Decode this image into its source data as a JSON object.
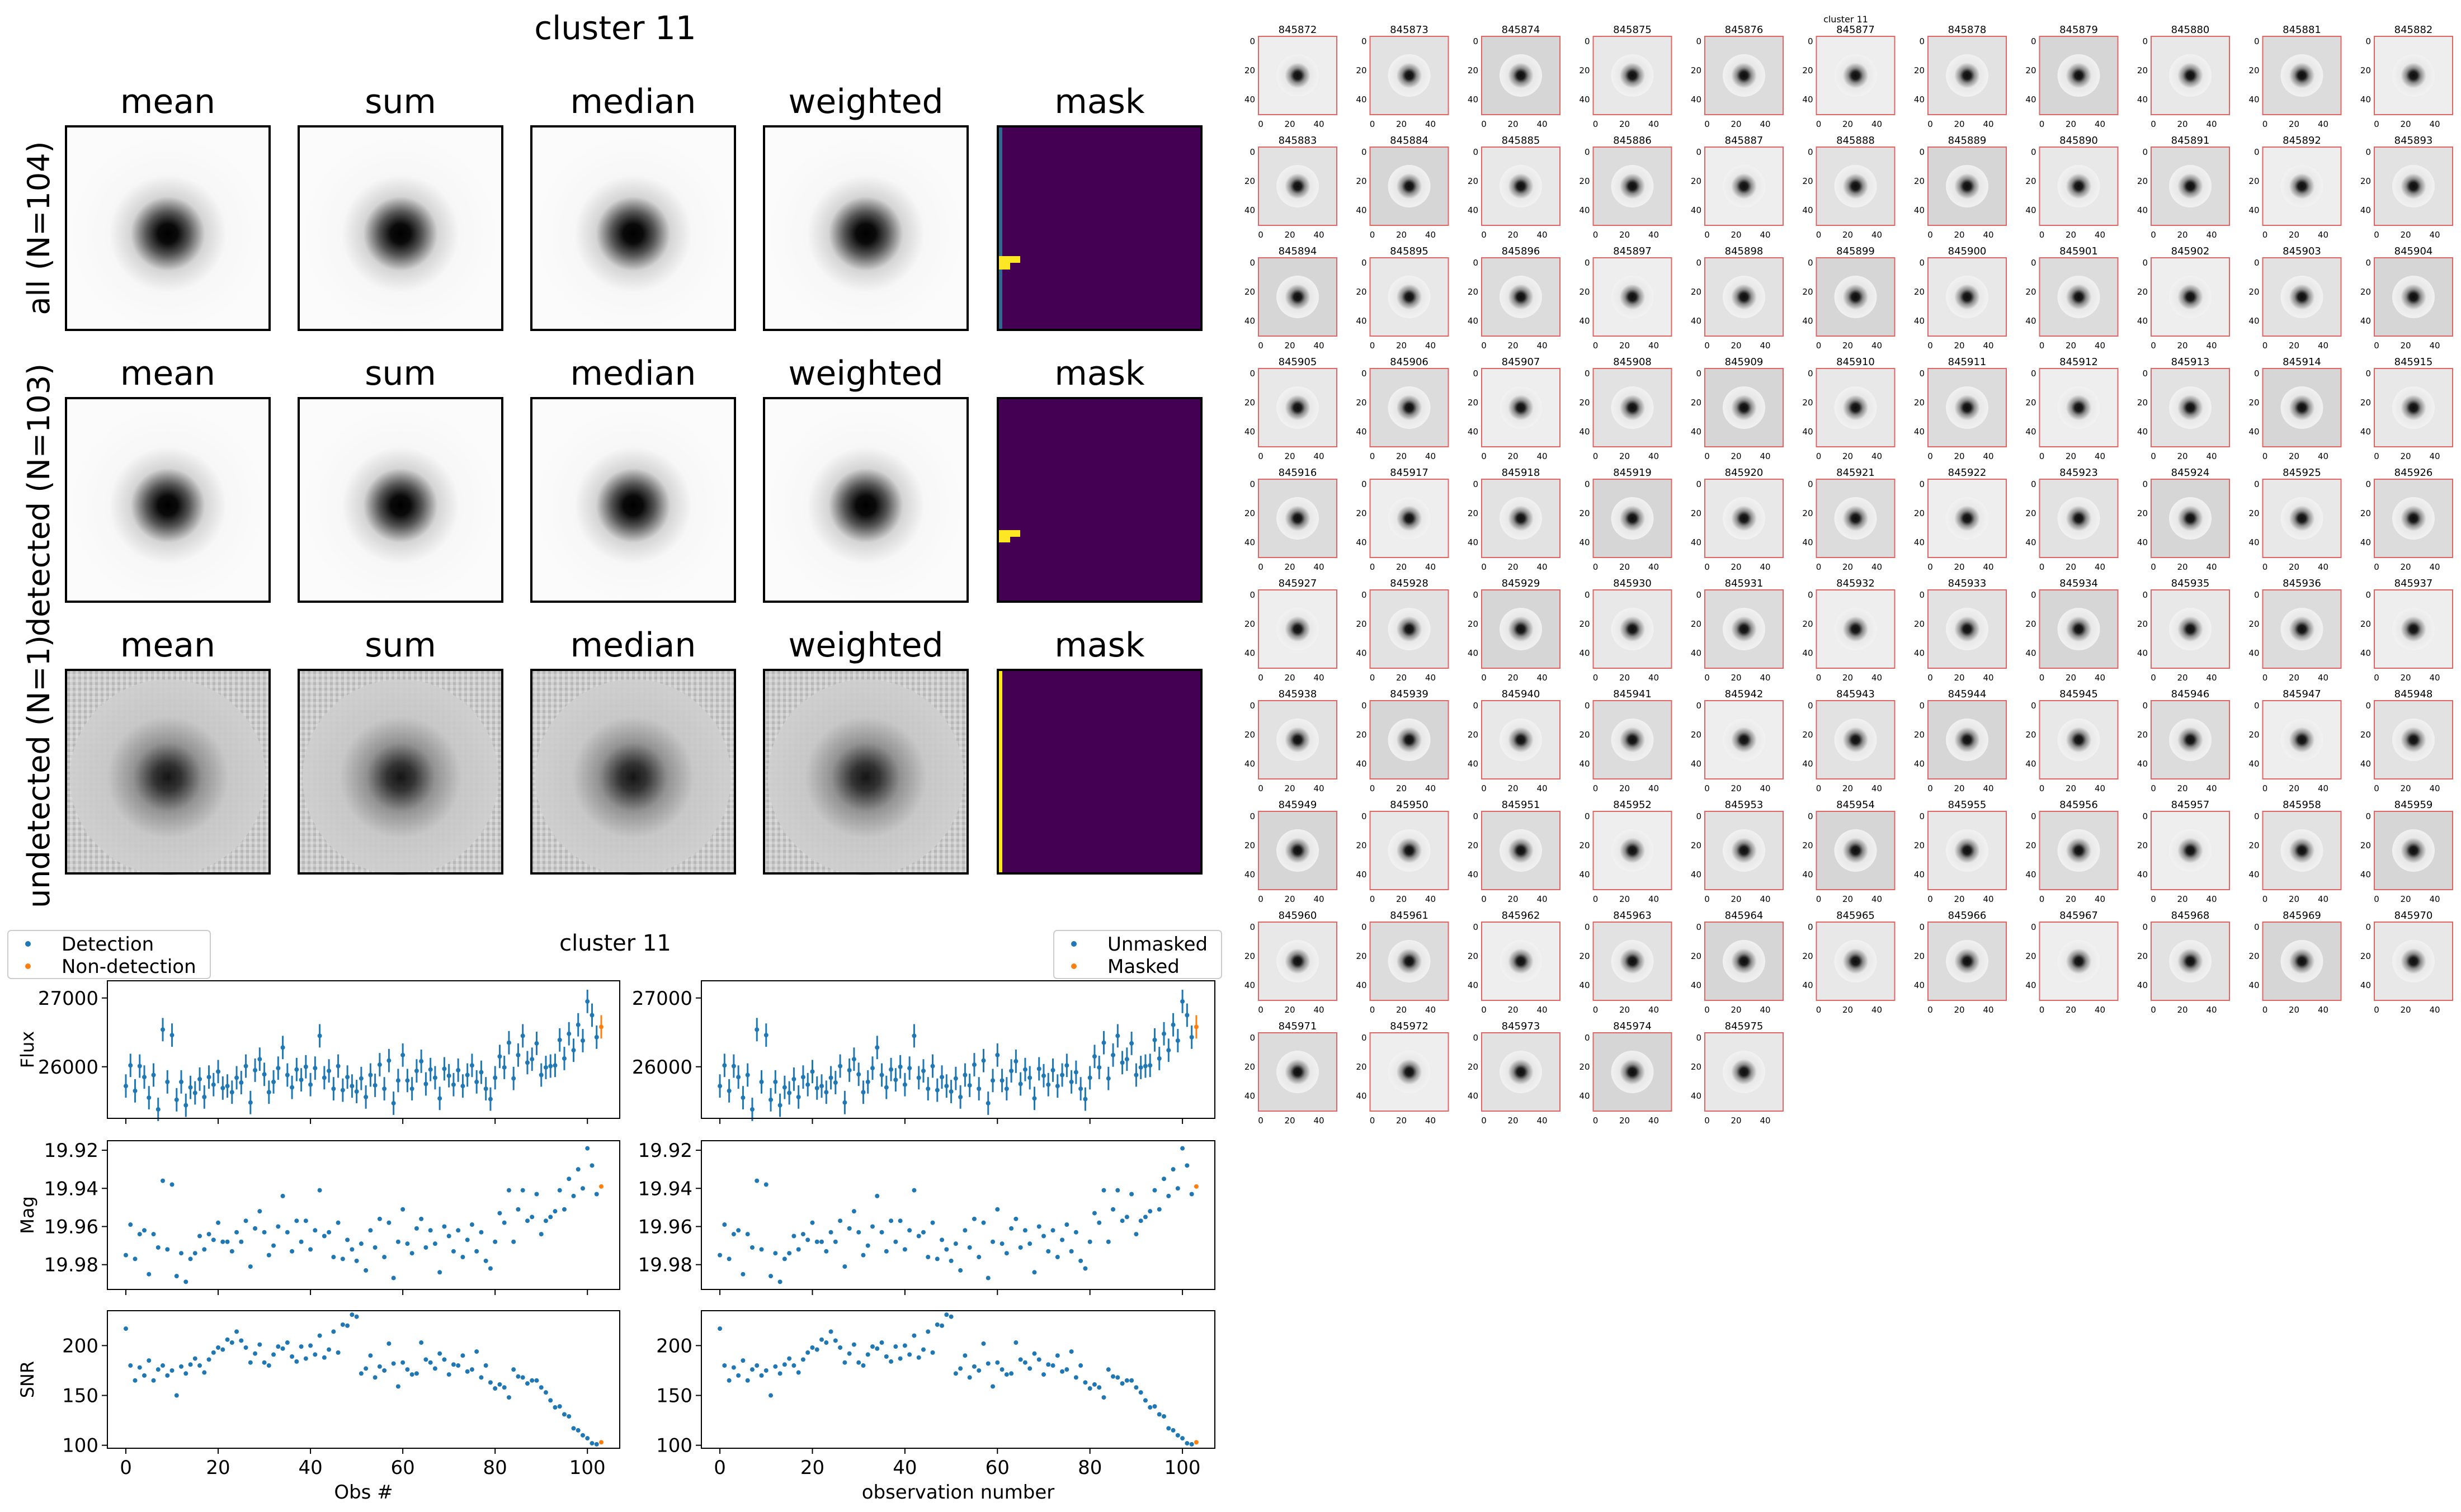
{
  "page_title": "cluster 11",
  "stamp_grid": {
    "row_labels": [
      "all (N=104)",
      "detected (N=103)",
      "undetected (N=1)"
    ],
    "column_labels": [
      "mean",
      "sum",
      "median",
      "weighted",
      "mask"
    ],
    "colors": {
      "frame": "#000000",
      "mask_background": "#440154",
      "mask_column": "#31688e",
      "mask_flag": "#fde725"
    }
  },
  "lightcurve_panel": {
    "title": "cluster 11",
    "left_legend": [
      {
        "label": "Detection",
        "color": "#1f77b4"
      },
      {
        "label": "Non-detection",
        "color": "#ff7f0e"
      }
    ],
    "right_legend": [
      {
        "label": "Unmasked",
        "color": "#1f77b4"
      },
      {
        "label": "Masked",
        "color": "#ff7f0e"
      }
    ],
    "left_xlabel": "Obs #",
    "right_xlabel": "observation number",
    "ylabels": [
      "Flux",
      "Mag",
      "SNR"
    ],
    "x_ticks": [
      "0",
      "20",
      "40",
      "60",
      "80",
      "100"
    ],
    "flux_ticks": [
      "26000",
      "27000"
    ],
    "mag_ticks": [
      "19.92",
      "19.94",
      "19.96",
      "19.98"
    ],
    "snr_ticks": [
      "100",
      "150",
      "200"
    ]
  },
  "thumb_panel": {
    "title": "cluster 11",
    "ids": [
      "845872",
      "845873",
      "845874",
      "845875",
      "845876",
      "845877",
      "845878",
      "845879",
      "845880",
      "845881",
      "845882",
      "845883",
      "845884",
      "845885",
      "845886",
      "845887",
      "845888",
      "845889",
      "845890",
      "845891",
      "845892",
      "845893",
      "845894",
      "845895",
      "845896",
      "845897",
      "845898",
      "845899",
      "845900",
      "845901",
      "845902",
      "845903",
      "845904",
      "845905",
      "845906",
      "845907",
      "845908",
      "845909",
      "845910",
      "845911",
      "845912",
      "845913",
      "845914",
      "845915",
      "845916",
      "845917",
      "845918",
      "845919",
      "845920",
      "845921",
      "845922",
      "845923",
      "845924",
      "845925",
      "845926",
      "845927",
      "845928",
      "845929",
      "845930",
      "845931",
      "845932",
      "845933",
      "845934",
      "845935",
      "845936",
      "845937",
      "845938",
      "845939",
      "845940",
      "845941",
      "845942",
      "845943",
      "845944",
      "845945",
      "845946",
      "845947",
      "845948",
      "845949",
      "845950",
      "845951",
      "845952",
      "845953",
      "845954",
      "845955",
      "845956",
      "845957",
      "845958",
      "845959",
      "845960",
      "845961",
      "845962",
      "845963",
      "845964",
      "845965",
      "845966",
      "845967",
      "845968",
      "845969",
      "845970",
      "845971",
      "845972",
      "845973",
      "845974",
      "845975"
    ],
    "y_ticks": [
      "0",
      "20",
      "40"
    ],
    "x_ticks": [
      "0",
      "20",
      "40"
    ],
    "frame_color": "#e06666"
  },
  "chart_data": [
    {
      "type": "scatter",
      "name": "flux vs obs",
      "ylabel": "Flux",
      "xlim": [
        -4,
        107
      ],
      "ylim": [
        25250,
        27250
      ],
      "x": [
        0,
        1,
        2,
        3,
        4,
        5,
        6,
        7,
        8,
        9,
        10,
        11,
        12,
        13,
        14,
        15,
        16,
        17,
        18,
        19,
        20,
        21,
        22,
        23,
        24,
        25,
        26,
        27,
        28,
        29,
        30,
        31,
        32,
        33,
        34,
        35,
        36,
        37,
        38,
        39,
        40,
        41,
        42,
        43,
        44,
        45,
        46,
        47,
        48,
        49,
        50,
        51,
        52,
        53,
        54,
        55,
        56,
        57,
        58,
        59,
        60,
        61,
        62,
        63,
        64,
        65,
        66,
        67,
        68,
        69,
        70,
        71,
        72,
        73,
        74,
        75,
        76,
        77,
        78,
        79,
        80,
        81,
        82,
        83,
        84,
        85,
        86,
        87,
        88,
        89,
        90,
        91,
        92,
        93,
        94,
        95,
        96,
        97,
        98,
        99,
        100,
        101,
        102,
        103
      ],
      "y": [
        25720,
        26020,
        25650,
        26010,
        25850,
        25550,
        25880,
        25380,
        26540,
        25780,
        26460,
        25520,
        25780,
        25440,
        25700,
        25620,
        25820,
        25560,
        25850,
        25740,
        25930,
        25690,
        25720,
        25630,
        25840,
        25770,
        26010,
        25480,
        25950,
        26110,
        25890,
        25630,
        25780,
        25980,
        26280,
        25880,
        25700,
        25960,
        25810,
        26000,
        25740,
        25980,
        26450,
        25840,
        25940,
        25680,
        26010,
        25660,
        25850,
        25720,
        25640,
        25830,
        25560,
        25880,
        25730,
        26030,
        25680,
        26090,
        25470,
        25800,
        26170,
        25800,
        25680,
        25940,
        26080,
        25750,
        25960,
        25840,
        25540,
        25970,
        25870,
        25740,
        25950,
        25720,
        25880,
        26020,
        25780,
        25920,
        25680,
        25530,
        25840,
        26150,
        25990,
        26350,
        25830,
        26170,
        26450,
        26060,
        26110,
        26340,
        25880,
        25990,
        26010,
        26020,
        26390,
        26120,
        26480,
        26240,
        26610,
        26380,
        26950,
        26750,
        26430,
        26580
      ],
      "err": 170,
      "series": [
        {
          "name": "Detection",
          "range": [
            0,
            102
          ],
          "color": "#1f77b4"
        },
        {
          "name": "Non-detection",
          "index": 103,
          "color": "#ff7f0e"
        }
      ]
    },
    {
      "type": "scatter",
      "name": "mag vs obs",
      "ylabel": "Mag",
      "ylim_reversed": [
        19.915,
        19.993
      ],
      "values_same_x_as_flux": true,
      "y": [
        19.975,
        19.959,
        19.977,
        19.964,
        19.962,
        19.985,
        19.964,
        19.971,
        19.936,
        19.972,
        19.938,
        19.986,
        19.974,
        19.989,
        19.977,
        19.974,
        19.965,
        19.972,
        19.964,
        19.967,
        19.958,
        19.968,
        19.968,
        19.973,
        19.963,
        19.968,
        19.957,
        19.981,
        19.961,
        19.952,
        19.963,
        19.975,
        19.97,
        19.96,
        19.944,
        19.963,
        19.973,
        19.957,
        19.968,
        19.957,
        19.972,
        19.962,
        19.941,
        19.965,
        19.963,
        19.976,
        19.958,
        19.977,
        19.967,
        19.972,
        19.978,
        19.969,
        19.983,
        19.962,
        19.971,
        19.956,
        19.976,
        19.958,
        19.987,
        19.968,
        19.951,
        19.969,
        19.974,
        19.961,
        19.956,
        19.971,
        19.962,
        19.969,
        19.984,
        19.96,
        19.965,
        19.973,
        19.962,
        19.976,
        19.967,
        19.959,
        19.973,
        19.963,
        19.978,
        19.982,
        19.968,
        19.953,
        19.958,
        19.941,
        19.968,
        19.951,
        19.941,
        19.957,
        19.955,
        19.943,
        19.964,
        19.957,
        19.955,
        19.952,
        19.941,
        19.951,
        19.935,
        19.944,
        19.93,
        19.94,
        19.919,
        19.928,
        19.943,
        19.939
      ],
      "series": [
        {
          "name": "Detection",
          "range": [
            0,
            102
          ],
          "color": "#1f77b4"
        },
        {
          "name": "Non-detection",
          "index": 103,
          "color": "#ff7f0e"
        }
      ]
    },
    {
      "type": "scatter",
      "name": "snr vs obs",
      "ylabel": "SNR",
      "xlabel": "Obs #",
      "ylim": [
        97,
        235
      ],
      "values_same_x_as_flux": true,
      "y": [
        217,
        180,
        165,
        178,
        170,
        185,
        165,
        176,
        180,
        170,
        175,
        150,
        179,
        172,
        181,
        187,
        180,
        173,
        186,
        193,
        198,
        196,
        206,
        203,
        214,
        205,
        198,
        183,
        192,
        201,
        183,
        180,
        191,
        199,
        197,
        203,
        189,
        184,
        199,
        187,
        200,
        191,
        210,
        188,
        196,
        214,
        193,
        221,
        220,
        231,
        229,
        172,
        177,
        190,
        168,
        179,
        175,
        202,
        182,
        159,
        183,
        176,
        171,
        172,
        203,
        186,
        183,
        177,
        192,
        186,
        171,
        181,
        180,
        190,
        174,
        176,
        194,
        168,
        180,
        163,
        157,
        161,
        158,
        148,
        176,
        169,
        168,
        162,
        165,
        165,
        158,
        153,
        145,
        138,
        139,
        131,
        129,
        117,
        115,
        110,
        107,
        102,
        101,
        103
      ],
      "series": [
        {
          "name": "Detection",
          "range": [
            0,
            102
          ],
          "color": "#1f77b4"
        },
        {
          "name": "Non-detection",
          "index": 103,
          "color": "#ff7f0e"
        }
      ]
    }
  ]
}
